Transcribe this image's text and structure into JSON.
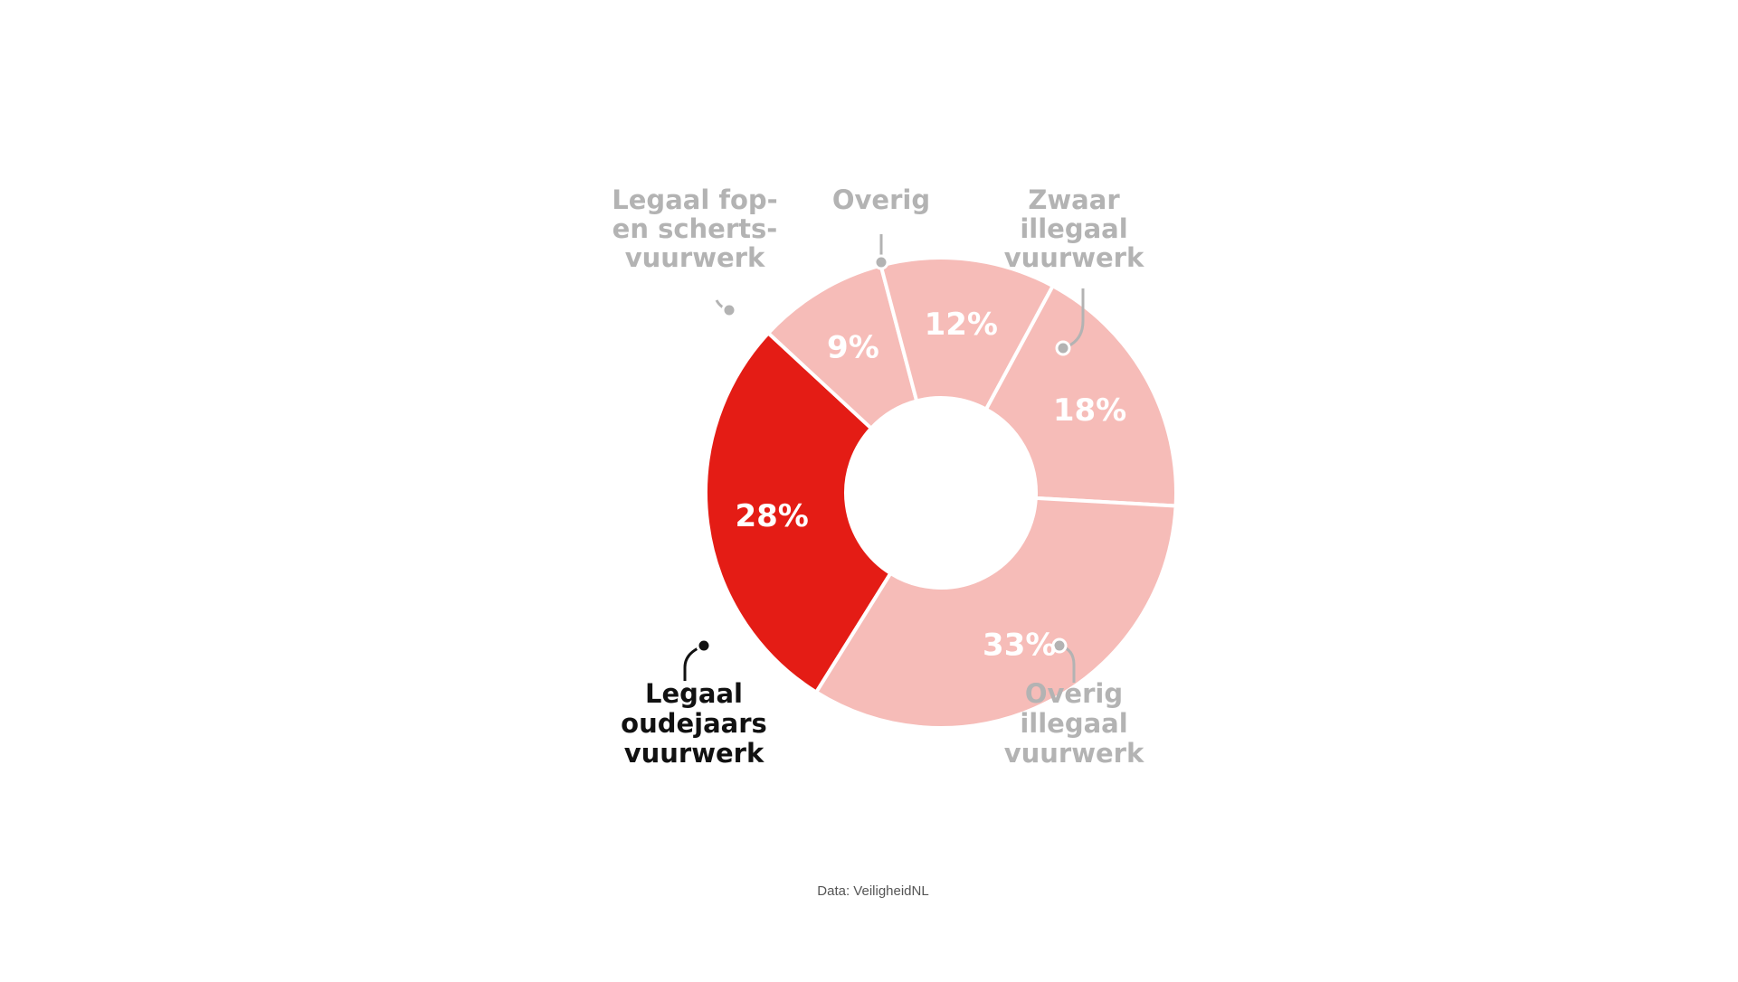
{
  "chart_data": {
    "type": "pie",
    "donut": true,
    "categories": [
      "Legaal oudejaars vuurwerk",
      "Legaal fop- en scherts-vuurwerk",
      "Overig",
      "Zwaar illegaal vuurwerk",
      "Overig illegaal vuurwerk"
    ],
    "values": [
      28,
      9,
      12,
      18,
      33
    ],
    "value_labels": [
      "28%",
      "9%",
      "12%",
      "18%",
      "33%"
    ],
    "category_label_lines": [
      [
        "Legaal",
        "oudejaars",
        "vuurwerk"
      ],
      [
        "Legaal fop-",
        "en scherts-",
        "vuurwerk"
      ],
      [
        "Overig"
      ],
      [
        "Zwaar",
        "illegaal",
        "vuurwerk"
      ],
      [
        "Overig",
        "illegaal",
        "vuurwerk"
      ]
    ],
    "highlighted": "Legaal oudejaars vuurwerk",
    "colors": {
      "highlight": "#e41c15",
      "other": "#f6bcb8",
      "highlight_label": "#111111",
      "other_label": "#b3b3b3",
      "value_label": "#ffffff",
      "separator": "#ffffff"
    },
    "source": "Data: VeiligheidNL"
  }
}
